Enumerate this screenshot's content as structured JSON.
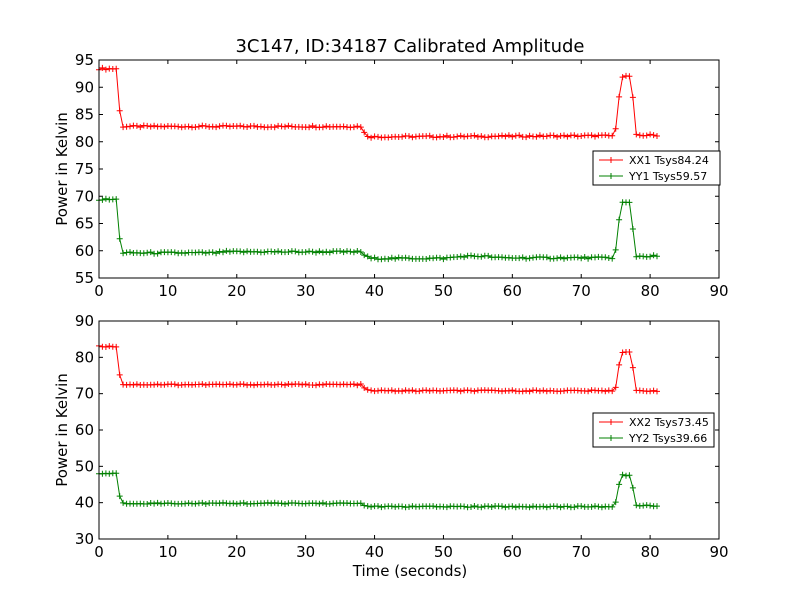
{
  "chart_data": [
    {
      "type": "line",
      "title": "3C147, ID:34187 Calibrated Amplitude",
      "xlabel": "",
      "ylabel": "Power in Kelvin",
      "xlim": [
        0,
        90
      ],
      "ylim": [
        55,
        95
      ],
      "xticks": [
        "0",
        "10",
        "20",
        "30",
        "40",
        "50",
        "60",
        "70",
        "80",
        "90"
      ],
      "yticks": [
        "55",
        "60",
        "65",
        "70",
        "75",
        "80",
        "85",
        "90",
        "95"
      ],
      "legend_position": "right",
      "marker": "+",
      "series": [
        {
          "name": "XX1 Tsys84.24",
          "color": "#ff0000",
          "points": [
            [
              0,
              93.4
            ],
            [
              2.5,
              93.4
            ],
            [
              2.8,
              88.5
            ],
            [
              3.2,
              82.8
            ],
            [
              38,
              82.8
            ],
            [
              38.7,
              81.2
            ],
            [
              39.4,
              80.9
            ],
            [
              74.7,
              81.1
            ],
            [
              75.2,
              83
            ],
            [
              75.7,
              92
            ],
            [
              77,
              92
            ],
            [
              77.5,
              88
            ],
            [
              78,
              81.2
            ],
            [
              81,
              81.2
            ]
          ]
        },
        {
          "name": "YY1 Tsys59.57",
          "color": "#008000",
          "points": [
            [
              0,
              69.4
            ],
            [
              2.5,
              69.4
            ],
            [
              2.8,
              65
            ],
            [
              3.2,
              59.6
            ],
            [
              17,
              59.6
            ],
            [
              18,
              59.8
            ],
            [
              38,
              59.8
            ],
            [
              38.7,
              59
            ],
            [
              39.4,
              58.6
            ],
            [
              50,
              58.6
            ],
            [
              53,
              59
            ],
            [
              56,
              59
            ],
            [
              58,
              58.7
            ],
            [
              74.7,
              58.7
            ],
            [
              75.2,
              61
            ],
            [
              75.7,
              68.8
            ],
            [
              77,
              68.8
            ],
            [
              77.5,
              64
            ],
            [
              78,
              59
            ],
            [
              81,
              59
            ]
          ]
        }
      ]
    },
    {
      "type": "line",
      "title": "",
      "xlabel": "Time (seconds)",
      "ylabel": "Power in Kelvin",
      "xlim": [
        0,
        90
      ],
      "ylim": [
        30,
        90
      ],
      "xticks": [
        "0",
        "10",
        "20",
        "30",
        "40",
        "50",
        "60",
        "70",
        "80",
        "90"
      ],
      "yticks": [
        "30",
        "40",
        "50",
        "60",
        "70",
        "80",
        "90"
      ],
      "legend_position": "right",
      "marker": "+",
      "series": [
        {
          "name": "XX2 Tsys73.45",
          "color": "#ff0000",
          "points": [
            [
              0,
              83
            ],
            [
              2.5,
              83
            ],
            [
              2.8,
              78
            ],
            [
              3.2,
              72.5
            ],
            [
              38,
              72.5
            ],
            [
              38.7,
              71.2
            ],
            [
              39.4,
              70.8
            ],
            [
              74.7,
              70.8
            ],
            [
              75.2,
              72.5
            ],
            [
              75.7,
              81.5
            ],
            [
              77,
              81.5
            ],
            [
              77.5,
              77
            ],
            [
              78,
              70.8
            ],
            [
              81,
              70.8
            ]
          ]
        },
        {
          "name": "YY2 Tsys39.66",
          "color": "#008000",
          "points": [
            [
              0,
              48
            ],
            [
              2.5,
              48
            ],
            [
              2.8,
              44
            ],
            [
              3.2,
              39.8
            ],
            [
              38,
              39.8
            ],
            [
              38.7,
              39.2
            ],
            [
              39.4,
              38.9
            ],
            [
              74.7,
              38.9
            ],
            [
              75.2,
              41
            ],
            [
              75.7,
              47.5
            ],
            [
              77,
              47.5
            ],
            [
              77.5,
              44
            ],
            [
              78,
              39.2
            ],
            [
              81,
              39.2
            ]
          ]
        }
      ]
    }
  ]
}
